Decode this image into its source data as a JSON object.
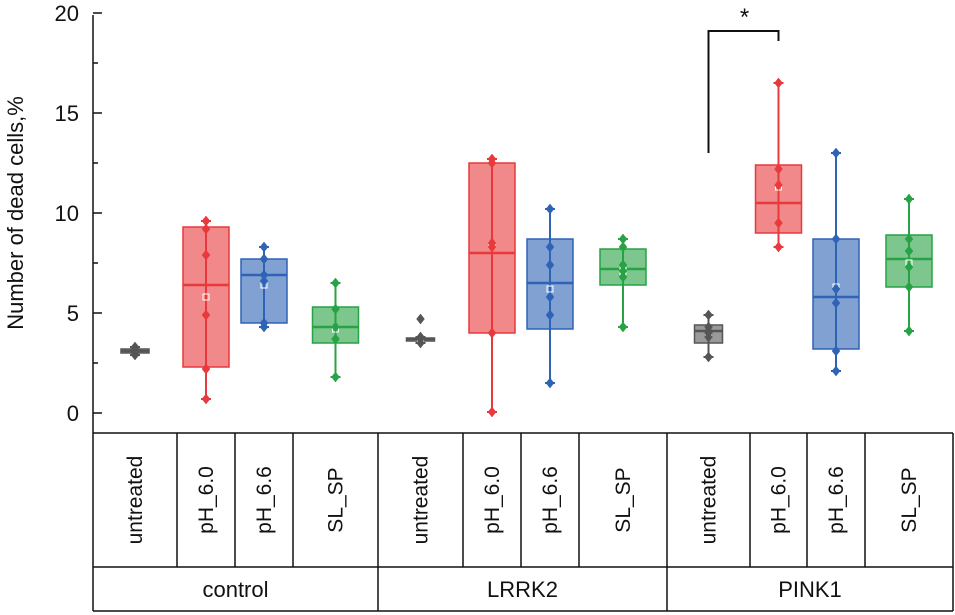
{
  "chart_data": {
    "type": "box",
    "ylabel": "Number of dead cells,%",
    "ylim": [
      0,
      20
    ],
    "yticks": [
      0,
      5,
      10,
      15,
      20
    ],
    "ytick_labels": [
      "0",
      "5",
      "10",
      "15",
      "20"
    ],
    "groups": [
      {
        "name": "control",
        "categories": [
          {
            "label": "untreated",
            "color": "#555555",
            "q1": 3.0,
            "median": 3.1,
            "q3": 3.2,
            "whisker_low": 2.9,
            "whisker_high": 3.3,
            "mean": 3.1,
            "points": [
              2.9,
              3.0,
              3.1,
              3.2,
              3.3
            ]
          },
          {
            "label": "pH_6.0",
            "color": "#e8393c",
            "q1": 2.3,
            "median": 6.4,
            "q3": 9.3,
            "whisker_low": 0.7,
            "whisker_high": 9.6,
            "mean": 5.8,
            "points": [
              0.7,
              2.2,
              4.9,
              7.9,
              9.2,
              9.6
            ]
          },
          {
            "label": "pH_6.6",
            "color": "#2e63b5",
            "q1": 4.5,
            "median": 6.9,
            "q3": 7.7,
            "whisker_low": 4.3,
            "whisker_high": 8.3,
            "mean": 6.4,
            "points": [
              4.3,
              4.5,
              6.6,
              6.9,
              7.7,
              8.3
            ]
          },
          {
            "label": "SL_SP",
            "color": "#27a244",
            "q1": 3.5,
            "median": 4.3,
            "q3": 5.3,
            "whisker_low": 1.8,
            "whisker_high": 6.5,
            "mean": 4.2,
            "points": [
              1.8,
              3.7,
              4.3,
              5.2,
              6.5
            ]
          }
        ]
      },
      {
        "name": "LRRK2",
        "categories": [
          {
            "label": "untreated",
            "color": "#555555",
            "q1": 3.6,
            "median": 3.7,
            "q3": 3.75,
            "whisker_low": 3.5,
            "whisker_high": 3.8,
            "mean": 3.7,
            "points": [
              3.5,
              3.7,
              3.8,
              4.7
            ]
          },
          {
            "label": "pH_6.0",
            "color": "#e8393c",
            "q1": 4.0,
            "median": 8.0,
            "q3": 12.5,
            "whisker_low": 0.05,
            "whisker_high": 12.7,
            "mean": 8.4,
            "points": [
              0.05,
              4.0,
              8.3,
              8.5,
              12.5,
              12.7
            ]
          },
          {
            "label": "pH_6.6",
            "color": "#2e63b5",
            "q1": 4.2,
            "median": 6.5,
            "q3": 8.7,
            "whisker_low": 1.5,
            "whisker_high": 10.2,
            "mean": 6.2,
            "points": [
              1.5,
              4.9,
              5.8,
              7.4,
              8.3,
              10.2
            ]
          },
          {
            "label": "SL_SP",
            "color": "#27a244",
            "q1": 6.4,
            "median": 7.2,
            "q3": 8.2,
            "whisker_low": 4.3,
            "whisker_high": 8.7,
            "mean": 7.1,
            "points": [
              4.3,
              6.8,
              7.1,
              7.4,
              8.3,
              8.7
            ]
          }
        ]
      },
      {
        "name": "PINK1",
        "categories": [
          {
            "label": "untreated",
            "color": "#555555",
            "q1": 3.5,
            "median": 4.1,
            "q3": 4.4,
            "whisker_low": 2.8,
            "whisker_high": 4.9,
            "mean": 3.9,
            "points": [
              2.8,
              3.8,
              4.0,
              4.1,
              4.3,
              4.9
            ]
          },
          {
            "label": "pH_6.0",
            "color": "#e8393c",
            "q1": 9.0,
            "median": 10.5,
            "q3": 12.4,
            "whisker_low": 8.3,
            "whisker_high": 16.5,
            "mean": 11.3,
            "points": [
              8.3,
              9.5,
              11.4,
              12.2,
              16.5
            ]
          },
          {
            "label": "pH_6.6",
            "color": "#2e63b5",
            "q1": 3.2,
            "median": 5.8,
            "q3": 8.7,
            "whisker_low": 2.1,
            "whisker_high": 13.0,
            "mean": 6.3,
            "points": [
              2.1,
              3.1,
              5.5,
              6.2,
              8.7,
              13.0
            ]
          },
          {
            "label": "SL_SP",
            "color": "#27a244",
            "q1": 6.3,
            "median": 7.7,
            "q3": 8.9,
            "whisker_low": 4.1,
            "whisker_high": 10.7,
            "mean": 7.5,
            "points": [
              4.1,
              6.3,
              7.3,
              8.1,
              8.7,
              10.7
            ]
          }
        ]
      }
    ],
    "annotations": [
      {
        "text": "*",
        "group_index": 2,
        "from_category": 0,
        "to_category": 1,
        "bracket_low": 13.0,
        "bracket_high": 19.1
      }
    ]
  }
}
